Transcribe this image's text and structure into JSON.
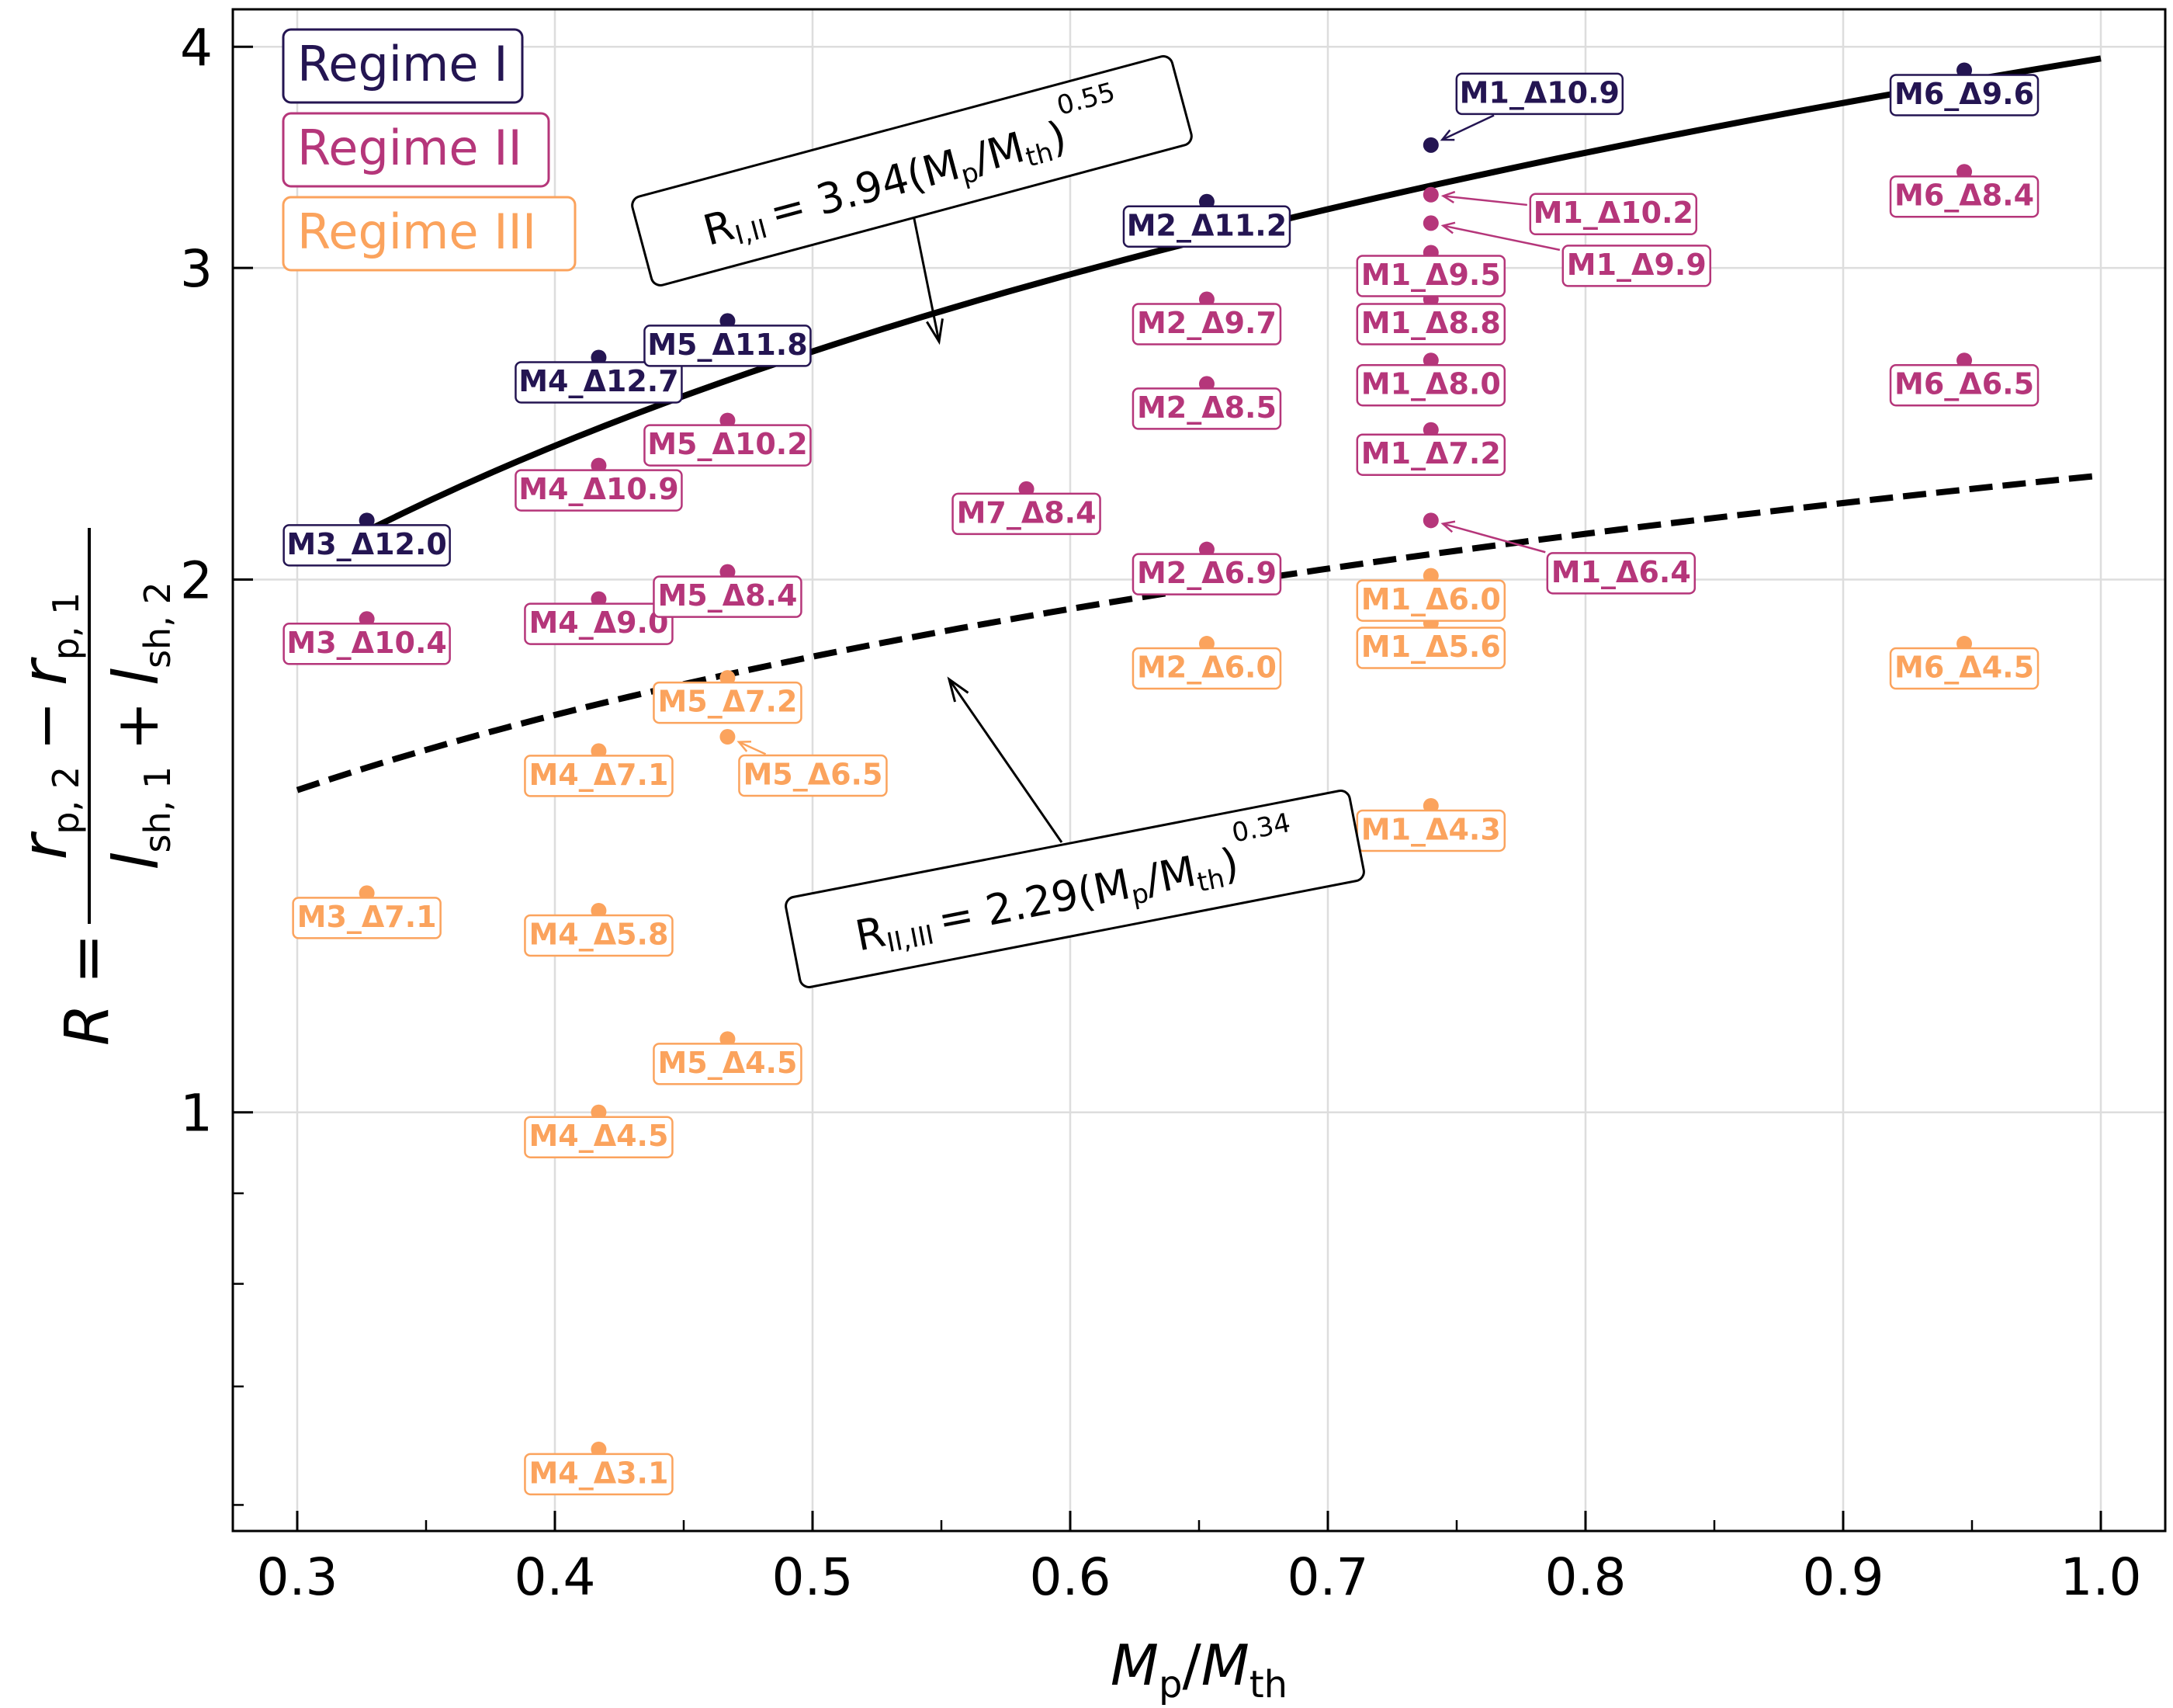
{
  "chart_data": {
    "type": "scatter",
    "xlabel": "Mp/Mth",
    "ylabel": "R = (rp,2 − rp,1)/(lsh,1 + lsh,2)",
    "xlim": [
      0.275,
      1.025
    ],
    "ylim": [
      0.58,
      4.2
    ],
    "yscale": "log",
    "grid": true,
    "legend_position": "top-left",
    "x_ticks": [
      "0.3",
      "0.4",
      "0.5",
      "0.6",
      "0.7",
      "0.8",
      "0.9",
      "1.0"
    ],
    "y_ticks": [
      "1",
      "2",
      "3",
      "4"
    ],
    "legend": [
      {
        "label": "Regime I",
        "color": "#241552"
      },
      {
        "label": "Regime II",
        "color": "#b5367a"
      },
      {
        "label": "Regime III",
        "color": "#fba35d"
      }
    ],
    "fits": [
      {
        "label": "R_I,II = 3.94(Mp/Mth)^0.55",
        "coefficient": 3.94,
        "exponent": 0.55,
        "style": "solid",
        "x_range": [
          0.33,
          1.0
        ]
      },
      {
        "label": "R_II,III = 2.29(Mp/Mth)^0.34",
        "coefficient": 2.29,
        "exponent": 0.34,
        "style": "dashed",
        "x_range": [
          0.3,
          1.0
        ]
      }
    ],
    "points": [
      {
        "label": "M1_Δ10.9",
        "x": 0.74,
        "y": 3.52,
        "regime": "Regime I"
      },
      {
        "label": "M2_Δ11.2",
        "x": 0.653,
        "y": 3.27,
        "regime": "Regime I"
      },
      {
        "label": "M3_Δ12.0",
        "x": 0.327,
        "y": 2.16,
        "regime": "Regime I"
      },
      {
        "label": "M4_Δ12.7",
        "x": 0.417,
        "y": 2.67,
        "regime": "Regime I"
      },
      {
        "label": "M5_Δ11.8",
        "x": 0.467,
        "y": 2.8,
        "regime": "Regime I"
      },
      {
        "label": "M6_Δ9.6",
        "x": 0.947,
        "y": 3.88,
        "regime": "Regime I"
      },
      {
        "label": "M1_Δ10.2",
        "x": 0.74,
        "y": 3.3,
        "regime": "Regime II"
      },
      {
        "label": "M1_Δ9.9",
        "x": 0.74,
        "y": 3.18,
        "regime": "Regime II"
      },
      {
        "label": "M1_Δ9.5",
        "x": 0.74,
        "y": 3.06,
        "regime": "Regime II"
      },
      {
        "label": "M1_Δ8.8",
        "x": 0.74,
        "y": 2.88,
        "regime": "Regime II"
      },
      {
        "label": "M1_Δ8.0",
        "x": 0.74,
        "y": 2.66,
        "regime": "Regime II"
      },
      {
        "label": "M1_Δ7.2",
        "x": 0.74,
        "y": 2.43,
        "regime": "Regime II"
      },
      {
        "label": "M1_Δ6.4",
        "x": 0.74,
        "y": 2.16,
        "regime": "Regime II"
      },
      {
        "label": "M2_Δ9.7",
        "x": 0.653,
        "y": 2.88,
        "regime": "Regime II"
      },
      {
        "label": "M2_Δ8.5",
        "x": 0.653,
        "y": 2.58,
        "regime": "Regime II"
      },
      {
        "label": "M2_Δ6.9",
        "x": 0.653,
        "y": 2.08,
        "regime": "Regime II"
      },
      {
        "label": "M3_Δ10.4",
        "x": 0.327,
        "y": 1.9,
        "regime": "Regime II"
      },
      {
        "label": "M4_Δ10.9",
        "x": 0.417,
        "y": 2.32,
        "regime": "Regime II"
      },
      {
        "label": "M4_Δ9.0",
        "x": 0.417,
        "y": 1.95,
        "regime": "Regime II"
      },
      {
        "label": "M5_Δ10.2",
        "x": 0.467,
        "y": 2.46,
        "regime": "Regime II"
      },
      {
        "label": "M5_Δ8.4",
        "x": 0.467,
        "y": 2.02,
        "regime": "Regime II"
      },
      {
        "label": "M6_Δ8.4",
        "x": 0.947,
        "y": 3.4,
        "regime": "Regime II"
      },
      {
        "label": "M6_Δ6.5",
        "x": 0.947,
        "y": 2.66,
        "regime": "Regime II"
      },
      {
        "label": "M7_Δ8.4",
        "x": 0.583,
        "y": 2.25,
        "regime": "Regime II"
      },
      {
        "label": "M1_Δ6.0",
        "x": 0.74,
        "y": 2.01,
        "regime": "Regime III"
      },
      {
        "label": "M1_Δ5.6",
        "x": 0.74,
        "y": 1.89,
        "regime": "Regime III"
      },
      {
        "label": "M1_Δ4.3",
        "x": 0.74,
        "y": 1.49,
        "regime": "Regime III"
      },
      {
        "label": "M2_Δ6.0",
        "x": 0.653,
        "y": 1.84,
        "regime": "Regime III"
      },
      {
        "label": "M3_Δ7.1",
        "x": 0.327,
        "y": 1.33,
        "regime": "Regime III"
      },
      {
        "label": "M4_Δ7.1",
        "x": 0.417,
        "y": 1.6,
        "regime": "Regime III"
      },
      {
        "label": "M4_Δ5.8",
        "x": 0.417,
        "y": 1.3,
        "regime": "Regime III"
      },
      {
        "label": "M4_Δ4.5",
        "x": 0.417,
        "y": 1.0,
        "regime": "Regime III"
      },
      {
        "label": "M4_Δ3.1",
        "x": 0.417,
        "y": 0.645,
        "regime": "Regime III"
      },
      {
        "label": "M5_Δ7.2",
        "x": 0.467,
        "y": 1.76,
        "regime": "Regime III"
      },
      {
        "label": "M5_Δ6.5",
        "x": 0.467,
        "y": 1.63,
        "regime": "Regime III"
      },
      {
        "label": "M5_Δ4.5",
        "x": 0.467,
        "y": 1.1,
        "regime": "Regime III"
      },
      {
        "label": "M6_Δ4.5",
        "x": 0.947,
        "y": 1.84,
        "regime": "Regime III"
      }
    ]
  }
}
